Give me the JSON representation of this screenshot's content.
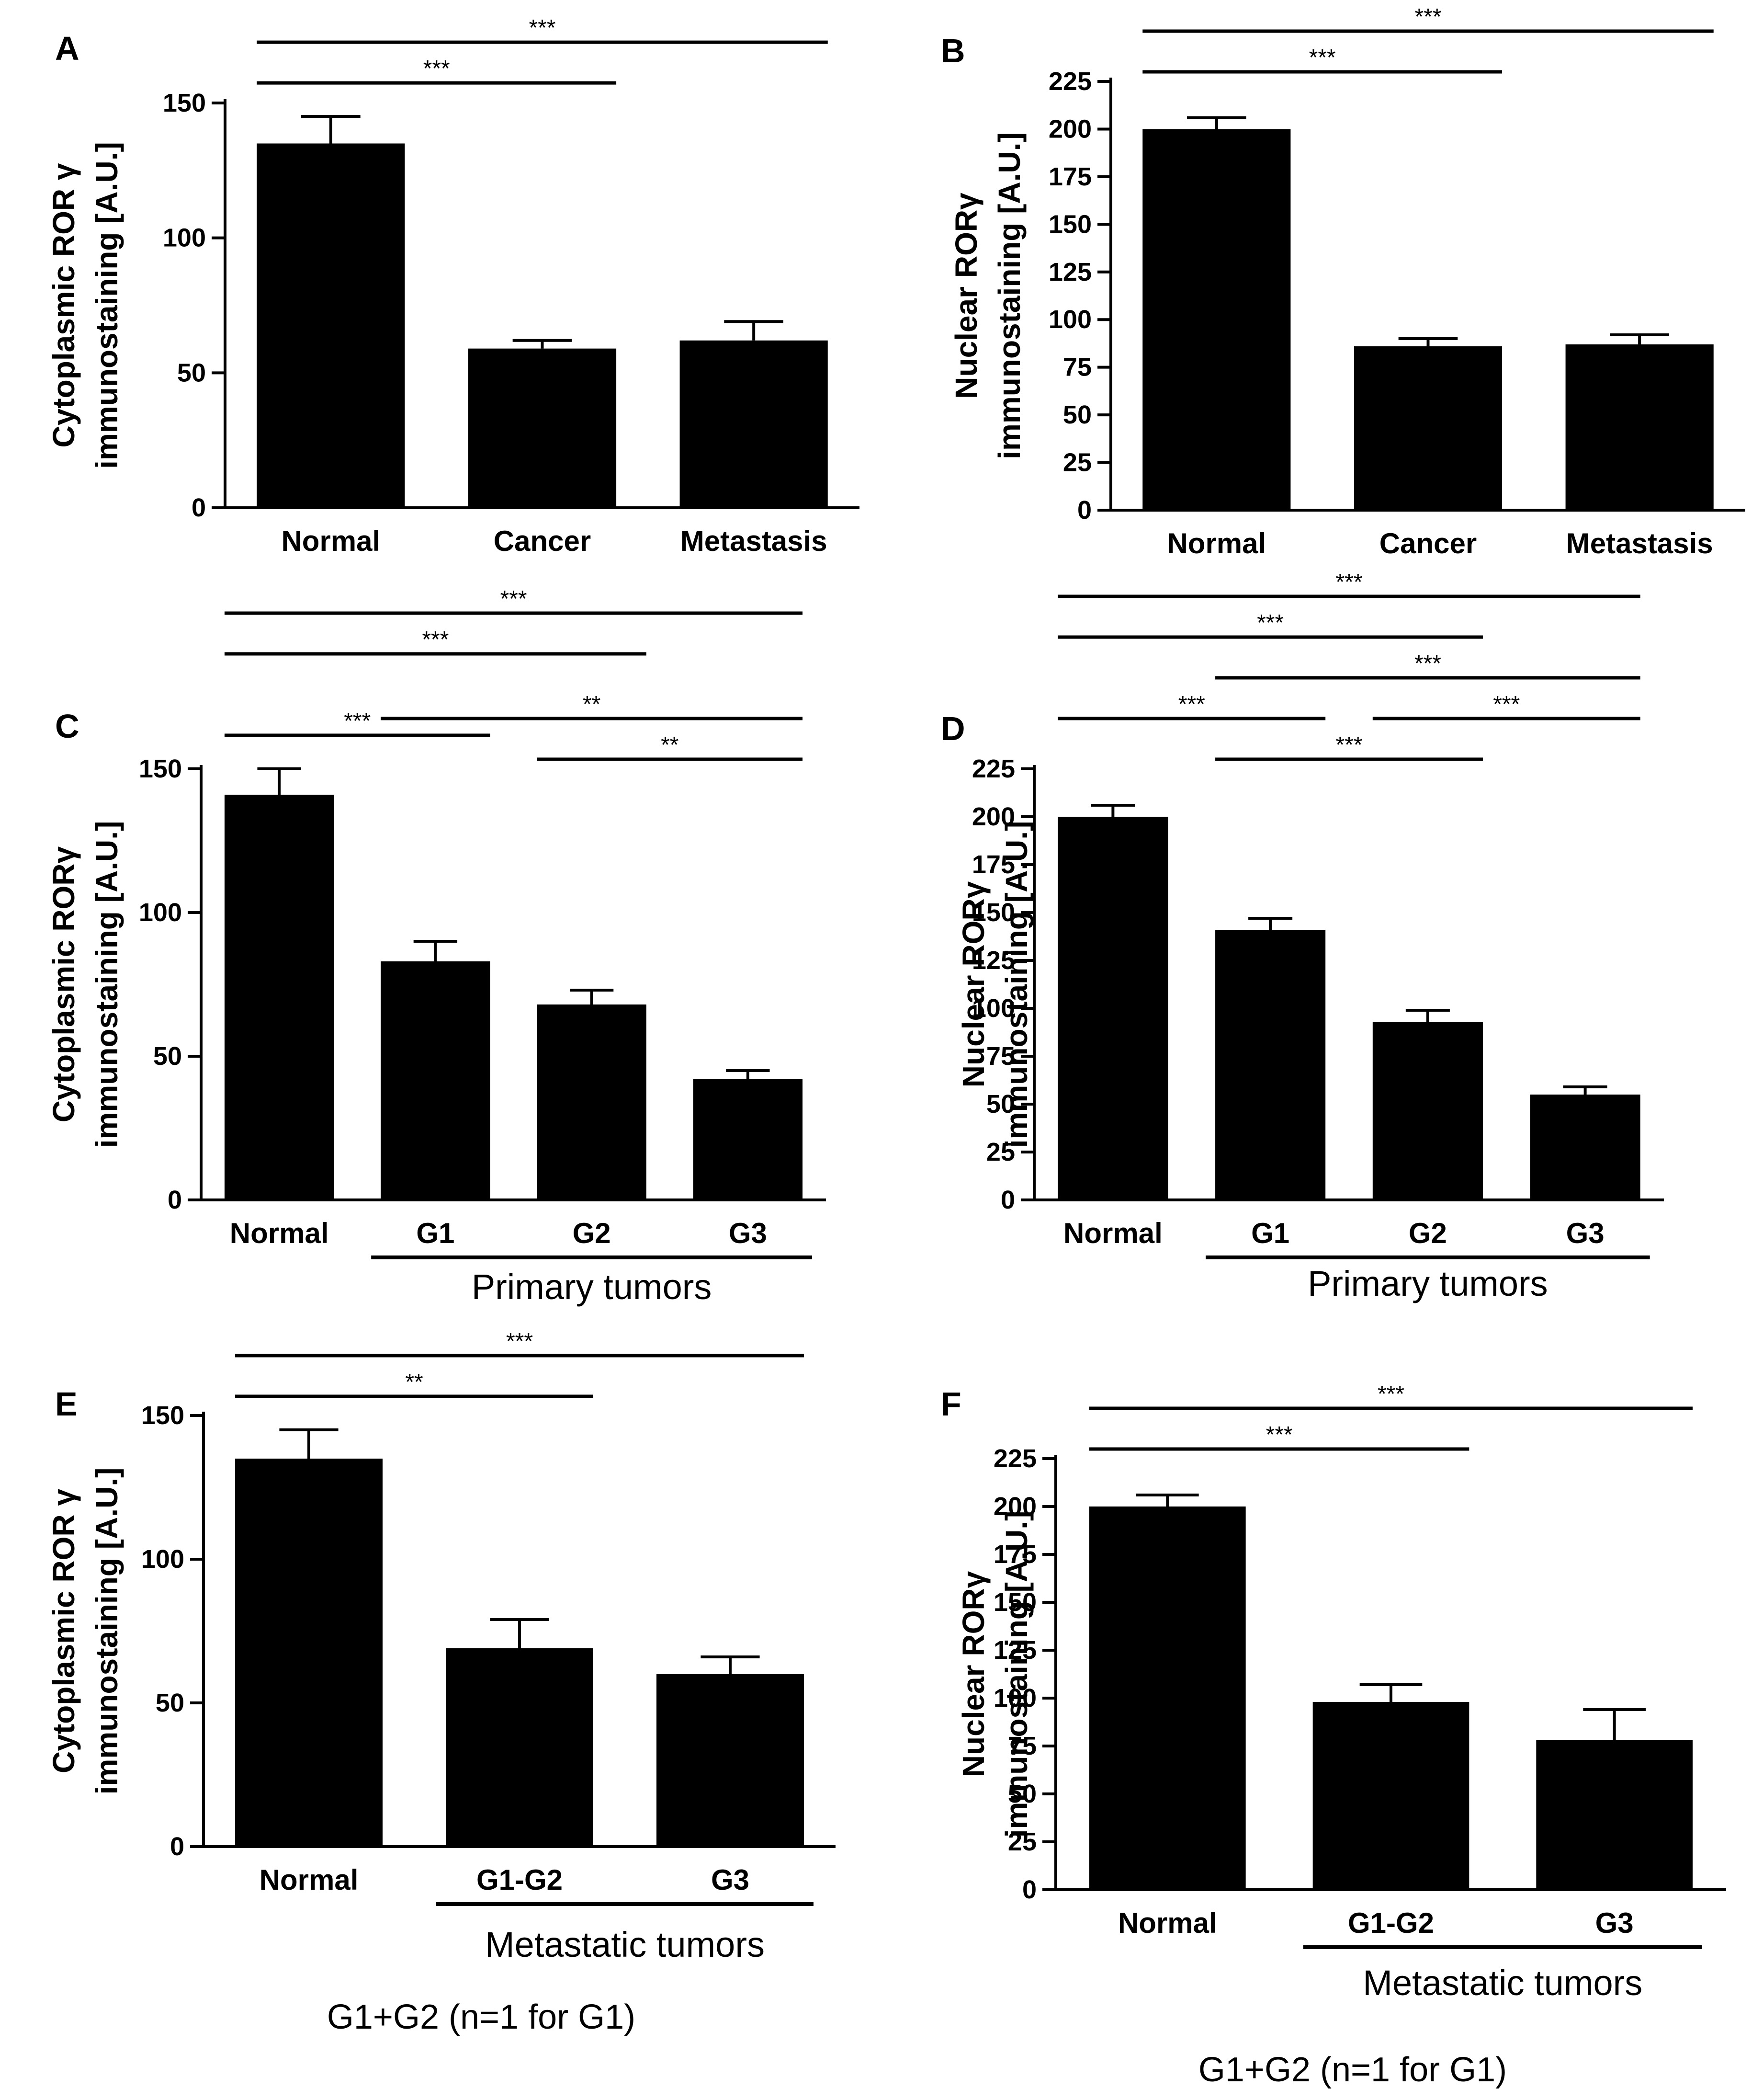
{
  "chart_data": [
    {
      "panel": "A",
      "type": "bar",
      "ylabel_lines": [
        "Cytoplasmic ROR γ",
        "immunostaining [A.U.]"
      ],
      "categories": [
        "Normal",
        "Cancer",
        "Metastasis"
      ],
      "values": [
        135,
        59,
        62
      ],
      "errors": [
        10,
        3,
        7
      ],
      "ylim": [
        0,
        150
      ],
      "yticks": [
        0,
        50,
        100,
        150
      ],
      "significance": [
        {
          "from": 0,
          "to": 1,
          "label": "***"
        },
        {
          "from": 0,
          "to": 2,
          "label": "***"
        }
      ],
      "group_label": null,
      "note": null
    },
    {
      "panel": "B",
      "type": "bar",
      "ylabel_lines": [
        "Nuclear RORγ",
        "immunostaining [A.U.]"
      ],
      "categories": [
        "Normal",
        "Cancer",
        "Metastasis"
      ],
      "values": [
        200,
        86,
        87
      ],
      "errors": [
        6,
        4,
        5
      ],
      "ylim": [
        0,
        225
      ],
      "yticks": [
        0,
        25,
        50,
        75,
        100,
        125,
        150,
        175,
        200,
        225
      ],
      "significance": [
        {
          "from": 0,
          "to": 1,
          "label": "***"
        },
        {
          "from": 0,
          "to": 2,
          "label": "***"
        }
      ],
      "group_label": null,
      "note": null
    },
    {
      "panel": "C",
      "type": "bar",
      "ylabel_lines": [
        "Cytoplasmic RORγ",
        "immunostaining [A.U.]"
      ],
      "categories": [
        "Normal",
        "G1",
        "G2",
        "G3"
      ],
      "values": [
        141,
        83,
        68,
        42
      ],
      "errors": [
        9,
        7,
        5,
        3
      ],
      "ylim": [
        0,
        150
      ],
      "yticks": [
        0,
        50,
        100,
        150
      ],
      "significance": [
        {
          "from": 2,
          "to": 3,
          "label": "**"
        },
        {
          "from": 0,
          "to": 1,
          "label": "***"
        },
        {
          "from": 1,
          "to": 3,
          "label": "**"
        },
        {
          "from": 0,
          "to": 2,
          "label": "***"
        },
        {
          "from": 0,
          "to": 3,
          "label": "***"
        }
      ],
      "group_label": {
        "text": "Primary tumors",
        "from": 1,
        "to": 3
      },
      "note": null
    },
    {
      "panel": "D",
      "type": "bar",
      "ylabel_lines": [
        "Nuclear RORγ",
        "immunostaining [A.U.]"
      ],
      "categories": [
        "Normal",
        "G1",
        "G2",
        "G3"
      ],
      "values": [
        200,
        141,
        93,
        55
      ],
      "errors": [
        6,
        6,
        6,
        4
      ],
      "ylim": [
        0,
        225
      ],
      "yticks": [
        0,
        25,
        50,
        75,
        100,
        125,
        150,
        175,
        200,
        225
      ],
      "significance": [
        {
          "from": 1,
          "to": 2,
          "label": "***"
        },
        {
          "from": 2,
          "to": 3,
          "label": "***"
        },
        {
          "from": 0,
          "to": 1,
          "label": "***"
        },
        {
          "from": 1,
          "to": 3,
          "label": "***"
        },
        {
          "from": 0,
          "to": 2,
          "label": "***"
        },
        {
          "from": 0,
          "to": 3,
          "label": "***"
        }
      ],
      "group_label": {
        "text": "Primary tumors",
        "from": 1,
        "to": 3
      },
      "note": null
    },
    {
      "panel": "E",
      "type": "bar",
      "ylabel_lines": [
        "Cytoplasmic ROR γ",
        "immunostaining [A.U.]"
      ],
      "categories": [
        "Normal",
        "G1-G2",
        "G3"
      ],
      "values": [
        135,
        69,
        60
      ],
      "errors": [
        10,
        10,
        6
      ],
      "ylim": [
        0,
        150
      ],
      "yticks": [
        0,
        50,
        100,
        150
      ],
      "significance": [
        {
          "from": 0,
          "to": 1,
          "label": "**"
        },
        {
          "from": 0,
          "to": 2,
          "label": "***"
        }
      ],
      "group_label": {
        "text": "Metastatic tumors",
        "from": 1,
        "to": 2
      },
      "note": "G1+G2 (n=1 for G1)"
    },
    {
      "panel": "F",
      "type": "bar",
      "ylabel_lines": [
        "Nuclear RORγ",
        "immunostaining [A.U.]"
      ],
      "categories": [
        "Normal",
        "G1-G2",
        "G3"
      ],
      "values": [
        200,
        98,
        78
      ],
      "errors": [
        6,
        9,
        16
      ],
      "ylim": [
        0,
        225
      ],
      "yticks": [
        0,
        25,
        50,
        75,
        100,
        125,
        150,
        175,
        200,
        225
      ],
      "significance": [
        {
          "from": 0,
          "to": 1,
          "label": "***"
        },
        {
          "from": 0,
          "to": 2,
          "label": "***"
        }
      ],
      "group_label": {
        "text": "Metastatic tumors",
        "from": 1,
        "to": 2
      },
      "note": "G1+G2 (n=1 for G1)"
    }
  ]
}
